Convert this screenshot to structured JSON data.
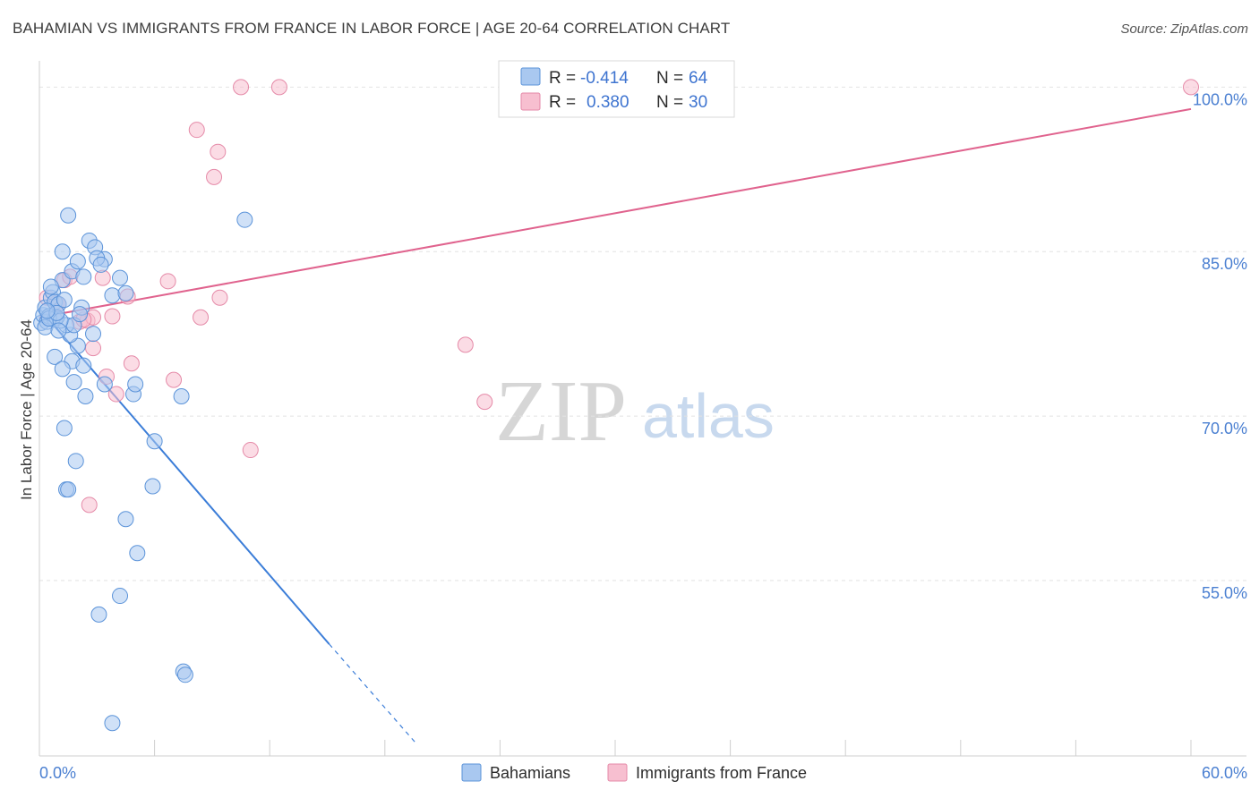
{
  "title": "BAHAMIAN VS IMMIGRANTS FROM FRANCE IN LABOR FORCE | AGE 20-64 CORRELATION CHART",
  "source": "Source: ZipAtlas.com",
  "watermark": {
    "zip": "ZIP",
    "atlas": "atlas"
  },
  "colors": {
    "blue_fill": "#a9c8f0",
    "blue_stroke": "#5b93d9",
    "blue_line": "#3b7dd8",
    "pink_fill": "#f7bfd0",
    "pink_stroke": "#e58aa8",
    "pink_line": "#e0638e",
    "grid": "#e2e2e2",
    "axis_text": "#4a7fd1"
  },
  "stats_legend": {
    "row1": {
      "r_label": "R =",
      "r_value": "-0.414",
      "n_label": "N =",
      "n_value": "64"
    },
    "row2": {
      "r_label": "R =",
      "r_value": "0.380",
      "n_label": "N =",
      "n_value": "30"
    }
  },
  "chart_data": {
    "type": "scatter",
    "title": "BAHAMIAN VS IMMIGRANTS FROM FRANCE IN LABOR FORCE | AGE 20-64 CORRELATION CHART",
    "xlabel": "",
    "ylabel": "In Labor Force | Age 20-64",
    "xlim": [
      0,
      60
    ],
    "ylim": [
      39,
      101.5
    ],
    "x_tick_labels": {
      "min": "0.0%",
      "max": "60.0%"
    },
    "y_ticks": [
      55,
      70,
      85,
      100
    ],
    "y_tick_labels": [
      "55.0%",
      "70.0%",
      "85.0%",
      "100.0%"
    ],
    "series": [
      {
        "name": "Bahamians",
        "color": "blue",
        "R": -0.414,
        "N": 64,
        "trend": {
          "x0": 0,
          "y0": 79.8,
          "x1": 15.1,
          "y1": 49.2,
          "dash_to_x": 19.7,
          "dash_to_y": 40.0
        },
        "points": [
          [
            0.1,
            78.5
          ],
          [
            0.2,
            79.2
          ],
          [
            0.3,
            79.9
          ],
          [
            0.4,
            78.6
          ],
          [
            0.5,
            79.1
          ],
          [
            0.6,
            80.8
          ],
          [
            0.7,
            81.3
          ],
          [
            0.8,
            78.8
          ],
          [
            0.8,
            80.4
          ],
          [
            1.0,
            80.2
          ],
          [
            1.2,
            82.4
          ],
          [
            1.5,
            88.3
          ],
          [
            1.7,
            83.2
          ],
          [
            2.0,
            84.1
          ],
          [
            2.3,
            82.7
          ],
          [
            2.6,
            86.0
          ],
          [
            2.9,
            85.4
          ],
          [
            3.4,
            84.3
          ],
          [
            3.8,
            81.0
          ],
          [
            4.2,
            82.6
          ],
          [
            4.5,
            81.2
          ],
          [
            1.2,
            85.0
          ],
          [
            2.2,
            79.9
          ],
          [
            2.0,
            76.4
          ],
          [
            1.7,
            75.0
          ],
          [
            0.8,
            75.4
          ],
          [
            1.2,
            74.3
          ],
          [
            1.8,
            73.1
          ],
          [
            2.4,
            71.8
          ],
          [
            3.4,
            72.9
          ],
          [
            1.3,
            68.9
          ],
          [
            1.9,
            65.9
          ],
          [
            1.4,
            63.3
          ],
          [
            1.5,
            63.3
          ],
          [
            2.8,
            77.5
          ],
          [
            1.6,
            77.4
          ],
          [
            1.4,
            78.3
          ],
          [
            1.8,
            78.3
          ],
          [
            0.9,
            79.0
          ],
          [
            2.1,
            79.3
          ],
          [
            3.0,
            84.4
          ],
          [
            3.2,
            83.8
          ],
          [
            4.9,
            72.0
          ],
          [
            5.0,
            72.9
          ],
          [
            6.0,
            67.7
          ],
          [
            7.4,
            71.8
          ],
          [
            10.7,
            87.9
          ],
          [
            4.5,
            60.6
          ],
          [
            5.1,
            57.5
          ],
          [
            4.2,
            53.6
          ],
          [
            3.1,
            51.9
          ],
          [
            5.9,
            63.6
          ],
          [
            7.5,
            46.7
          ],
          [
            7.6,
            46.4
          ],
          [
            3.8,
            42.0
          ],
          [
            0.3,
            78.1
          ],
          [
            0.5,
            78.9
          ],
          [
            1.1,
            78.7
          ],
          [
            0.6,
            81.8
          ],
          [
            1.3,
            80.6
          ],
          [
            0.9,
            79.4
          ],
          [
            0.4,
            79.6
          ],
          [
            2.3,
            74.6
          ],
          [
            1.0,
            77.8
          ]
        ]
      },
      {
        "name": "Immigrants from France",
        "color": "pink",
        "R": 0.38,
        "N": 30,
        "trend": {
          "x0": 0,
          "y0": 79.0,
          "x1": 60,
          "y1": 98.0
        },
        "points": [
          [
            0.4,
            80.8
          ],
          [
            0.9,
            80.3
          ],
          [
            1.3,
            82.4
          ],
          [
            1.6,
            82.7
          ],
          [
            2.1,
            78.6
          ],
          [
            2.5,
            78.7
          ],
          [
            2.8,
            79.0
          ],
          [
            3.3,
            82.6
          ],
          [
            3.8,
            79.1
          ],
          [
            4.6,
            80.9
          ],
          [
            6.7,
            82.3
          ],
          [
            8.2,
            96.1
          ],
          [
            9.3,
            94.1
          ],
          [
            9.1,
            91.8
          ],
          [
            10.5,
            100.0
          ],
          [
            12.5,
            100.0
          ],
          [
            8.4,
            79.0
          ],
          [
            9.4,
            80.8
          ],
          [
            4.0,
            72.0
          ],
          [
            4.8,
            74.8
          ],
          [
            3.5,
            73.6
          ],
          [
            7.0,
            73.3
          ],
          [
            2.8,
            76.2
          ],
          [
            11.0,
            66.9
          ],
          [
            2.6,
            61.9
          ],
          [
            22.2,
            76.5
          ],
          [
            23.2,
            71.3
          ],
          [
            60.0,
            100.0
          ],
          [
            1.0,
            80.2
          ],
          [
            2.3,
            78.8
          ]
        ]
      }
    ]
  },
  "bottom_legend": {
    "item1": "Bahamians",
    "item2": "Immigrants from France"
  }
}
